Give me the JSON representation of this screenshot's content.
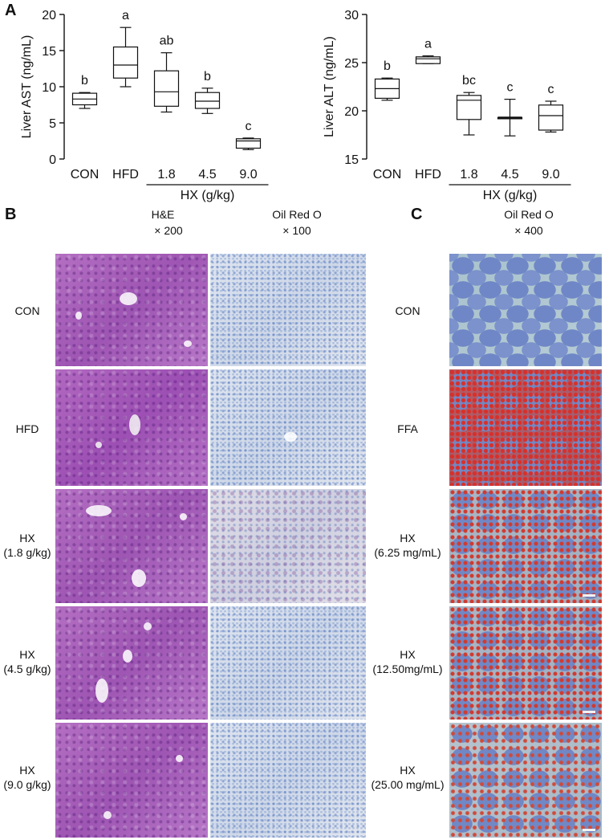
{
  "panel_a": {
    "letter": "A"
  },
  "panel_b": {
    "letter": "B",
    "col1_title": "H&E",
    "col1_mag": "× 200",
    "col2_title": "Oil Red O",
    "col2_mag": "× 100",
    "rows": [
      {
        "line1": "CON",
        "line2": ""
      },
      {
        "line1": "HFD",
        "line2": ""
      },
      {
        "line1": "HX",
        "line2": "(1.8 g/kg)"
      },
      {
        "line1": "HX",
        "line2": "(4.5 g/kg)"
      },
      {
        "line1": "HX",
        "line2": "(9.0 g/kg)"
      }
    ]
  },
  "panel_c": {
    "letter": "C",
    "title": "Oil Red O",
    "mag": "× 400",
    "rows": [
      {
        "line1": "CON",
        "line2": ""
      },
      {
        "line1": "FFA",
        "line2": ""
      },
      {
        "line1": "HX",
        "line2": "(6.25 mg/mL)"
      },
      {
        "line1": "HX",
        "line2": "(12.50mg/mL)"
      },
      {
        "line1": "HX",
        "line2": "(25.00 mg/mL)"
      }
    ]
  },
  "colors": {
    "axis": "#111111",
    "box_fill": "#ffffff"
  },
  "chart_data": [
    {
      "type": "boxplot",
      "ylabel": "Liver AST (ng/mL)",
      "ylim": [
        0,
        20
      ],
      "yticks": [
        0,
        5,
        10,
        15,
        20
      ],
      "categories": [
        "CON",
        "HFD",
        "1.8",
        "4.5",
        "9.0"
      ],
      "group_label": "HX (g/kg)",
      "grouped_categories": [
        "1.8",
        "4.5",
        "9.0"
      ],
      "boxes": [
        {
          "min": 7.0,
          "q1": 7.5,
          "median": 8.3,
          "q3": 9.1,
          "max": 9.2,
          "letter": "b"
        },
        {
          "min": 10.0,
          "q1": 11.2,
          "median": 13.0,
          "q3": 15.5,
          "max": 18.2,
          "letter": "a"
        },
        {
          "min": 6.5,
          "q1": 7.3,
          "median": 9.3,
          "q3": 12.2,
          "max": 14.7,
          "letter": "ab"
        },
        {
          "min": 6.3,
          "q1": 7.0,
          "median": 8.0,
          "q3": 9.2,
          "max": 9.8,
          "letter": "b"
        },
        {
          "min": 1.3,
          "q1": 1.5,
          "median": 2.5,
          "q3": 2.8,
          "max": 2.9,
          "letter": "c"
        }
      ]
    },
    {
      "type": "boxplot",
      "ylabel": "Liver ALT (ng/mL)",
      "ylim": [
        15,
        30
      ],
      "yticks": [
        15,
        20,
        25,
        30
      ],
      "categories": [
        "CON",
        "HFD",
        "1.8",
        "4.5",
        "9.0"
      ],
      "group_label": "HX (g/kg)",
      "grouped_categories": [
        "1.8",
        "4.5",
        "9.0"
      ],
      "boxes": [
        {
          "min": 21.1,
          "q1": 21.3,
          "median": 22.3,
          "q3": 23.3,
          "max": 23.4,
          "letter": "b"
        },
        {
          "min": 24.9,
          "q1": 24.9,
          "median": 25.4,
          "q3": 25.6,
          "max": 25.7,
          "letter": "a"
        },
        {
          "min": 17.5,
          "q1": 19.1,
          "median": 21.1,
          "q3": 21.6,
          "max": 21.9,
          "letter": "bc"
        },
        {
          "min": 17.4,
          "q1": 19.3,
          "median": 19.3,
          "q3": 19.3,
          "max": 21.2,
          "letter": "c"
        },
        {
          "min": 17.8,
          "q1": 18.0,
          "median": 19.5,
          "q3": 20.6,
          "max": 21.0,
          "letter": "c"
        }
      ]
    }
  ]
}
